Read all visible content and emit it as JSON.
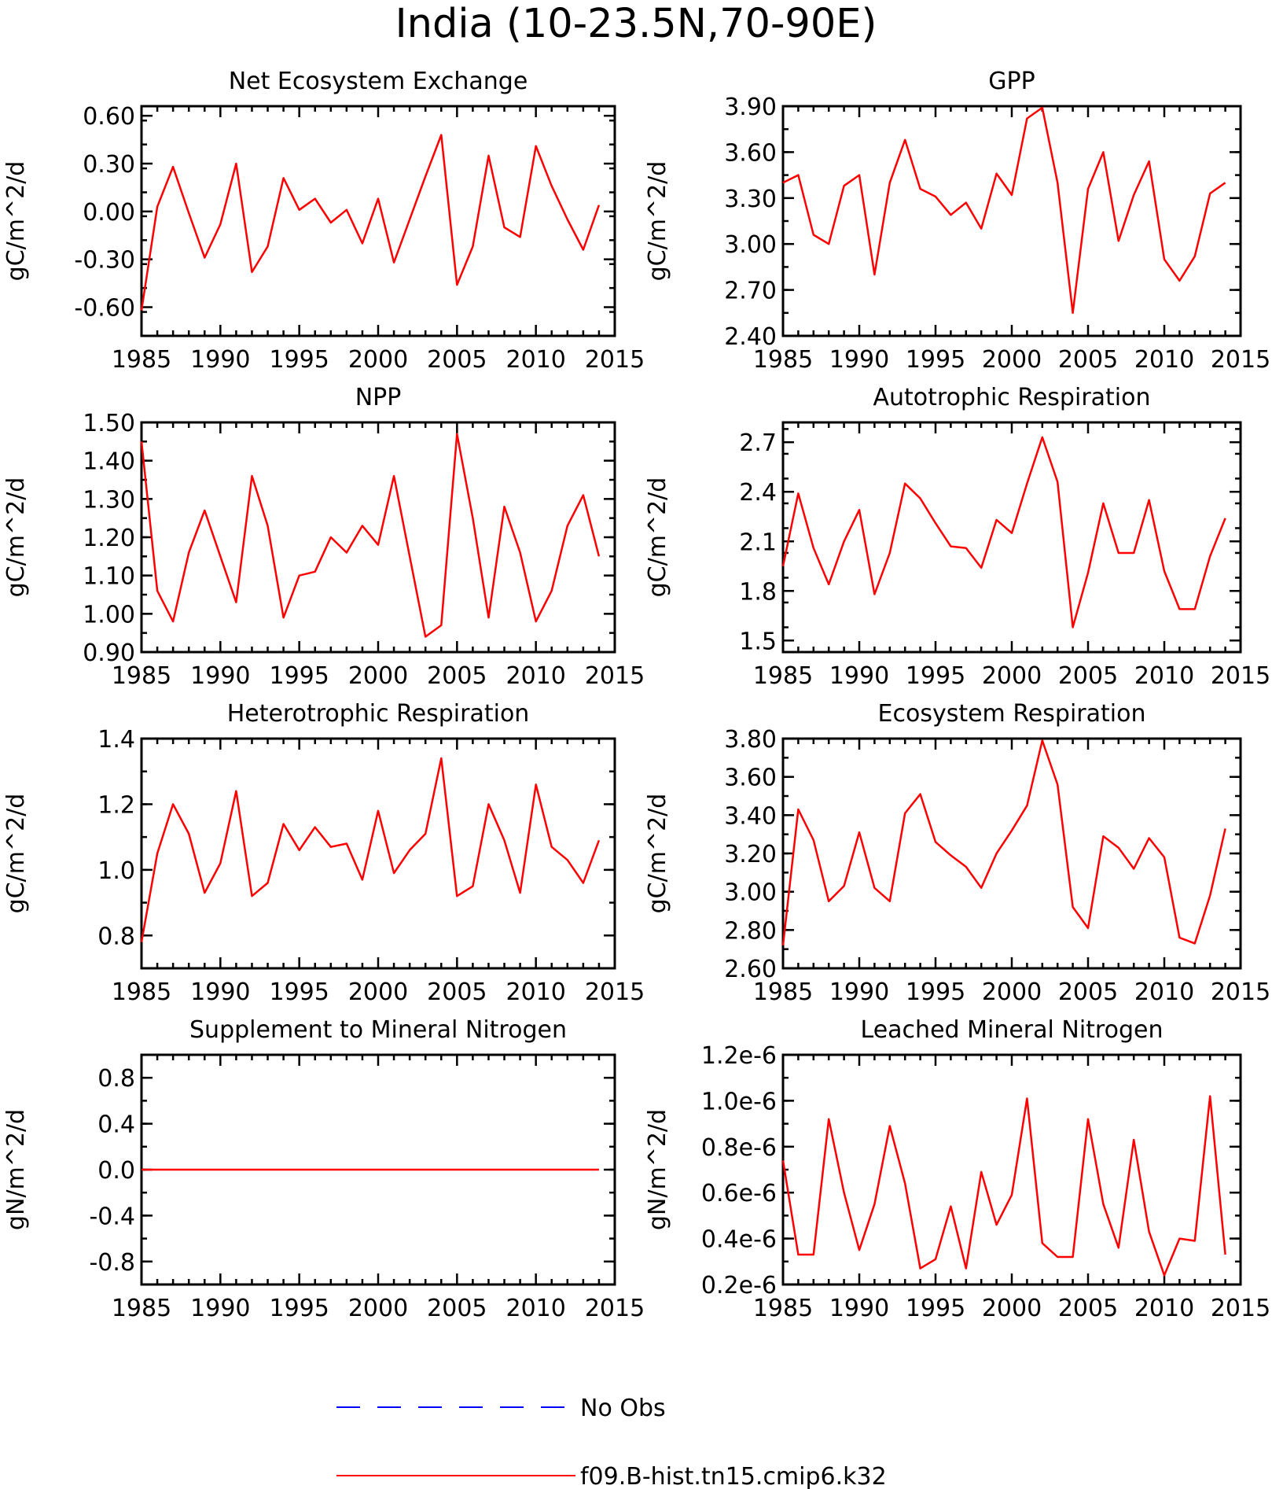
{
  "title": "India (10-23.5N,70-90E)",
  "legend": {
    "placement": "bottom-center",
    "entries": [
      {
        "label": "No Obs",
        "color": "#0000ff",
        "style": "dashed"
      },
      {
        "label": "f09.B-hist.tn15.cmip6.k32",
        "color": "#ff0000",
        "style": "solid"
      }
    ]
  },
  "chart_data": [
    {
      "type": "line",
      "title": "Net Ecosystem Exchange",
      "xlabel": "",
      "ylabel": "gC/m^2/d",
      "xlim": [
        1985,
        2015
      ],
      "ylim": [
        -0.78,
        0.66
      ],
      "xticks": [
        "1985",
        "1990",
        "1995",
        "2000",
        "2005",
        "2010",
        "2015"
      ],
      "yticks": [
        "-0.60",
        "-0.30",
        "0.00",
        "0.30",
        "0.60"
      ],
      "ytick_values": [
        -0.6,
        -0.3,
        0,
        0.3,
        0.6
      ],
      "series": [
        {
          "name": "f09.B-hist.tn15.cmip6.k32",
          "color": "#ff0000",
          "x": [
            1985,
            1986,
            1987,
            1988,
            1989,
            1990,
            1991,
            1992,
            1993,
            1994,
            1995,
            1996,
            1997,
            1998,
            1999,
            2000,
            2001,
            2002,
            2003,
            2004,
            2005,
            2006,
            2007,
            2008,
            2009,
            2010,
            2011,
            2012,
            2013,
            2014
          ],
          "values": [
            -0.62,
            0.03,
            0.28,
            -0.01,
            -0.29,
            -0.08,
            0.3,
            -0.38,
            -0.22,
            0.21,
            0.01,
            0.08,
            -0.07,
            0.01,
            -0.2,
            0.08,
            -0.32,
            -0.05,
            0.22,
            0.48,
            -0.46,
            -0.22,
            0.35,
            -0.1,
            -0.16,
            0.41,
            0.16,
            -0.05,
            -0.24,
            0.04
          ]
        }
      ]
    },
    {
      "type": "line",
      "title": "GPP",
      "xlabel": "",
      "ylabel": "gC/m^2/d",
      "xlim": [
        1985,
        2015
      ],
      "ylim": [
        2.4,
        3.9
      ],
      "xticks": [
        "1985",
        "1990",
        "1995",
        "2000",
        "2005",
        "2010",
        "2015"
      ],
      "yticks": [
        "2.40",
        "2.70",
        "3.00",
        "3.30",
        "3.60",
        "3.90"
      ],
      "ytick_values": [
        2.4,
        2.7,
        3.0,
        3.3,
        3.6,
        3.9
      ],
      "series": [
        {
          "name": "f09.B-hist.tn15.cmip6.k32",
          "color": "#ff0000",
          "x": [
            1985,
            1986,
            1987,
            1988,
            1989,
            1990,
            1991,
            1992,
            1993,
            1994,
            1995,
            1996,
            1997,
            1998,
            1999,
            2000,
            2001,
            2002,
            2003,
            2004,
            2005,
            2006,
            2007,
            2008,
            2009,
            2010,
            2011,
            2012,
            2013,
            2014
          ],
          "values": [
            3.4,
            3.45,
            3.06,
            3.0,
            3.38,
            3.45,
            2.8,
            3.4,
            3.68,
            3.36,
            3.31,
            3.19,
            3.27,
            3.1,
            3.46,
            3.32,
            3.82,
            3.89,
            3.4,
            2.55,
            3.36,
            3.6,
            3.02,
            3.32,
            3.54,
            2.9,
            2.76,
            2.92,
            3.33,
            3.4
          ]
        }
      ]
    },
    {
      "type": "line",
      "title": "NPP",
      "xlabel": "",
      "ylabel": "gC/m^2/d",
      "xlim": [
        1985,
        2015
      ],
      "ylim": [
        0.9,
        1.5
      ],
      "xticks": [
        "1985",
        "1990",
        "1995",
        "2000",
        "2005",
        "2010",
        "2015"
      ],
      "yticks": [
        "0.90",
        "1.00",
        "1.10",
        "1.20",
        "1.30",
        "1.40",
        "1.50"
      ],
      "ytick_values": [
        0.9,
        1.0,
        1.1,
        1.2,
        1.3,
        1.4,
        1.5
      ],
      "series": [
        {
          "name": "f09.B-hist.tn15.cmip6.k32",
          "color": "#ff0000",
          "x": [
            1985,
            1986,
            1987,
            1988,
            1989,
            1990,
            1991,
            1992,
            1993,
            1994,
            1995,
            1996,
            1997,
            1998,
            1999,
            2000,
            2001,
            2002,
            2003,
            2004,
            2005,
            2006,
            2007,
            2008,
            2009,
            2010,
            2011,
            2012,
            2013,
            2014
          ],
          "values": [
            1.45,
            1.06,
            0.98,
            1.16,
            1.27,
            1.15,
            1.03,
            1.36,
            1.23,
            0.99,
            1.1,
            1.11,
            1.2,
            1.16,
            1.23,
            1.18,
            1.36,
            1.15,
            0.94,
            0.97,
            1.47,
            1.25,
            0.99,
            1.28,
            1.16,
            0.98,
            1.06,
            1.23,
            1.31,
            1.15
          ]
        }
      ]
    },
    {
      "type": "line",
      "title": "Autotrophic Respiration",
      "xlabel": "",
      "ylabel": "gC/m^2/d",
      "xlim": [
        1985,
        2015
      ],
      "ylim": [
        1.43,
        2.82
      ],
      "xticks": [
        "1985",
        "1990",
        "1995",
        "2000",
        "2005",
        "2010",
        "2015"
      ],
      "yticks": [
        "1.5",
        "1.8",
        "2.1",
        "2.4",
        "2.7"
      ],
      "ytick_values": [
        1.5,
        1.8,
        2.1,
        2.4,
        2.7
      ],
      "series": [
        {
          "name": "f09.B-hist.tn15.cmip6.k32",
          "color": "#ff0000",
          "x": [
            1985,
            1986,
            1987,
            1988,
            1989,
            1990,
            1991,
            1992,
            1993,
            1994,
            1995,
            1996,
            1997,
            1998,
            1999,
            2000,
            2001,
            2002,
            2003,
            2004,
            2005,
            2006,
            2007,
            2008,
            2009,
            2010,
            2011,
            2012,
            2013,
            2014
          ],
          "values": [
            1.95,
            2.39,
            2.06,
            1.84,
            2.1,
            2.29,
            1.78,
            2.03,
            2.45,
            2.36,
            2.21,
            2.07,
            2.06,
            1.94,
            2.23,
            2.15,
            2.45,
            2.73,
            2.46,
            1.58,
            1.91,
            2.33,
            2.03,
            2.03,
            2.35,
            1.92,
            1.69,
            1.69,
            2.01,
            2.24
          ]
        }
      ]
    },
    {
      "type": "line",
      "title": "Heterotrophic Respiration",
      "xlabel": "",
      "ylabel": "gC/m^2/d",
      "xlim": [
        1985,
        2015
      ],
      "ylim": [
        0.7,
        1.4
      ],
      "xticks": [
        "1985",
        "1990",
        "1995",
        "2000",
        "2005",
        "2010",
        "2015"
      ],
      "yticks": [
        "0.8",
        "1.0",
        "1.2",
        "1.4"
      ],
      "ytick_values": [
        0.8,
        1.0,
        1.2,
        1.4
      ],
      "series": [
        {
          "name": "f09.B-hist.tn15.cmip6.k32",
          "color": "#ff0000",
          "x": [
            1985,
            1986,
            1987,
            1988,
            1989,
            1990,
            1991,
            1992,
            1993,
            1994,
            1995,
            1996,
            1997,
            1998,
            1999,
            2000,
            2001,
            2002,
            2003,
            2004,
            2005,
            2006,
            2007,
            2008,
            2009,
            2010,
            2011,
            2012,
            2013,
            2014
          ],
          "values": [
            0.78,
            1.05,
            1.2,
            1.11,
            0.93,
            1.02,
            1.24,
            0.92,
            0.96,
            1.14,
            1.06,
            1.13,
            1.07,
            1.08,
            0.97,
            1.18,
            0.99,
            1.06,
            1.11,
            1.34,
            0.92,
            0.95,
            1.2,
            1.09,
            0.93,
            1.26,
            1.07,
            1.03,
            0.96,
            1.09
          ]
        }
      ]
    },
    {
      "type": "line",
      "title": "Ecosystem Respiration",
      "xlabel": "",
      "ylabel": "gC/m^2/d",
      "xlim": [
        1985,
        2015
      ],
      "ylim": [
        2.6,
        3.8
      ],
      "xticks": [
        "1985",
        "1990",
        "1995",
        "2000",
        "2005",
        "2010",
        "2015"
      ],
      "yticks": [
        "2.60",
        "2.80",
        "3.00",
        "3.20",
        "3.40",
        "3.60",
        "3.80"
      ],
      "ytick_values": [
        2.6,
        2.8,
        3.0,
        3.2,
        3.4,
        3.6,
        3.8
      ],
      "series": [
        {
          "name": "f09.B-hist.tn15.cmip6.k32",
          "color": "#ff0000",
          "x": [
            1985,
            1986,
            1987,
            1988,
            1989,
            1990,
            1991,
            1992,
            1993,
            1994,
            1995,
            1996,
            1997,
            1998,
            1999,
            2000,
            2001,
            2002,
            2003,
            2004,
            2005,
            2006,
            2007,
            2008,
            2009,
            2010,
            2011,
            2012,
            2013,
            2014
          ],
          "values": [
            2.72,
            3.43,
            3.27,
            2.95,
            3.03,
            3.31,
            3.02,
            2.95,
            3.41,
            3.51,
            3.26,
            3.19,
            3.13,
            3.02,
            3.2,
            3.32,
            3.45,
            3.79,
            3.56,
            2.92,
            2.81,
            3.29,
            3.23,
            3.12,
            3.28,
            3.18,
            2.76,
            2.73,
            2.98,
            3.33
          ]
        }
      ]
    },
    {
      "type": "line",
      "title": "Supplement to Mineral Nitrogen",
      "xlabel": "",
      "ylabel": "gN/m^2/d",
      "xlim": [
        1985,
        2015
      ],
      "ylim": [
        -1.0,
        1.0
      ],
      "xticks": [
        "1985",
        "1990",
        "1995",
        "2000",
        "2005",
        "2010",
        "2015"
      ],
      "yticks": [
        "-0.8",
        "-0.4",
        "0.0",
        "0.4",
        "0.8"
      ],
      "ytick_values": [
        -0.8,
        -0.4,
        0,
        0.4,
        0.8
      ],
      "series": [
        {
          "name": "f09.B-hist.tn15.cmip6.k32",
          "color": "#ff0000",
          "x": [
            1985,
            1986,
            1987,
            1988,
            1989,
            1990,
            1991,
            1992,
            1993,
            1994,
            1995,
            1996,
            1997,
            1998,
            1999,
            2000,
            2001,
            2002,
            2003,
            2004,
            2005,
            2006,
            2007,
            2008,
            2009,
            2010,
            2011,
            2012,
            2013,
            2014
          ],
          "values": [
            0,
            0,
            0,
            0,
            0,
            0,
            0,
            0,
            0,
            0,
            0,
            0,
            0,
            0,
            0,
            0,
            0,
            0,
            0,
            0,
            0,
            0,
            0,
            0,
            0,
            0,
            0,
            0,
            0,
            0
          ]
        }
      ]
    },
    {
      "type": "line",
      "title": "Leached Mineral Nitrogen",
      "xlabel": "",
      "ylabel": "gN/m^2/d",
      "xlim": [
        1985,
        2015
      ],
      "ylim": [
        2e-07,
        1.2e-06
      ],
      "xticks": [
        "1985",
        "1990",
        "1995",
        "2000",
        "2005",
        "2010",
        "2015"
      ],
      "yticks": [
        "0.2e-6",
        "0.4e-6",
        "0.6e-6",
        "0.8e-6",
        "1.0e-6",
        "1.2e-6"
      ],
      "ytick_values": [
        2e-07,
        4e-07,
        6e-07,
        8e-07,
        1e-06,
        1.2e-06
      ],
      "series": [
        {
          "name": "f09.B-hist.tn15.cmip6.k32",
          "color": "#ff0000",
          "x": [
            1985,
            1986,
            1987,
            1988,
            1989,
            1990,
            1991,
            1992,
            1993,
            1994,
            1995,
            1996,
            1997,
            1998,
            1999,
            2000,
            2001,
            2002,
            2003,
            2004,
            2005,
            2006,
            2007,
            2008,
            2009,
            2010,
            2011,
            2012,
            2013,
            2014
          ],
          "values": [
            7.4e-07,
            3.3e-07,
            3.3e-07,
            9.2e-07,
            6e-07,
            3.5e-07,
            5.5e-07,
            8.9e-07,
            6.4e-07,
            2.7e-07,
            3.1e-07,
            5.4e-07,
            2.7e-07,
            6.9e-07,
            4.6e-07,
            5.9e-07,
            1.01e-06,
            3.8e-07,
            3.2e-07,
            3.2e-07,
            9.2e-07,
            5.5e-07,
            3.6e-07,
            8.3e-07,
            4.3e-07,
            2.4e-07,
            4e-07,
            3.9e-07,
            1.02e-06,
            3.3e-07
          ]
        }
      ]
    }
  ]
}
